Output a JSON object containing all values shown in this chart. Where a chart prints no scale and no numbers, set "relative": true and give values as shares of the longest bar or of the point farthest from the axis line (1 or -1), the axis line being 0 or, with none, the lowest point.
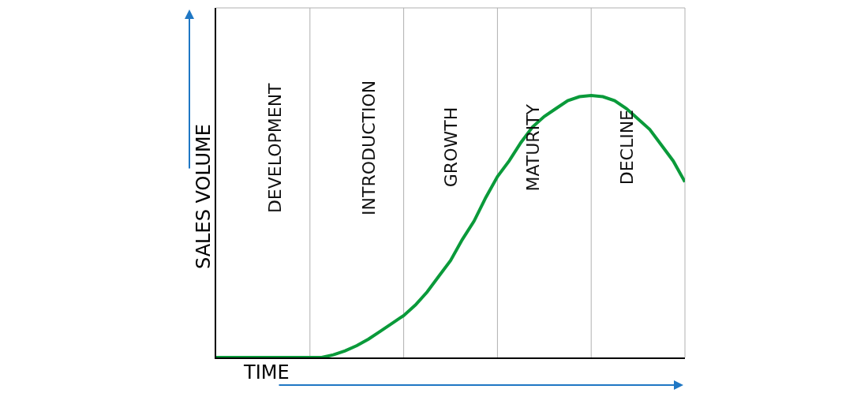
{
  "chart_data": {
    "type": "line",
    "relative": true,
    "xlabel": "TIME",
    "ylabel": "SALES VOLUME",
    "categories": [
      null,
      null,
      null,
      null,
      null,
      null,
      null,
      null,
      null,
      null,
      null,
      null,
      null,
      null,
      null,
      null,
      null,
      null,
      null,
      null,
      null,
      null,
      null,
      null,
      null,
      null,
      null,
      null,
      null,
      null,
      null,
      null,
      null,
      null,
      null,
      null,
      null,
      null,
      null,
      null,
      null
    ],
    "series": [
      {
        "color": "#0a9a3a",
        "values": [
          0,
          0,
          0,
          0,
          0,
          0,
          0,
          0,
          0,
          0,
          0.01,
          0.025,
          0.045,
          0.07,
          0.1,
          0.13,
          0.16,
          0.2,
          0.25,
          0.31,
          0.37,
          0.45,
          0.52,
          0.61,
          0.69,
          0.75,
          0.82,
          0.88,
          0.92,
          0.95,
          0.98,
          0.995,
          1.0,
          0.995,
          0.98,
          0.95,
          0.91,
          0.87,
          0.81,
          0.75,
          0.67
        ]
      }
    ],
    "annotations": [
      "DEVELOPMENT",
      "INTRODUCTION",
      "GROWTH",
      "MATURITY",
      "DECLINE"
    ],
    "grid": "x",
    "marker": "none",
    "line_style": "solid"
  }
}
